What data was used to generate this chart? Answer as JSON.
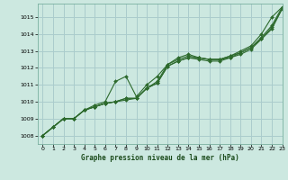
{
  "title": "Graphe pression niveau de la mer (hPa)",
  "bg_color": "#cce8e0",
  "grid_color": "#aacccc",
  "line_color": "#2d6a2d",
  "xlim": [
    -0.5,
    23
  ],
  "ylim": [
    1007.5,
    1015.8
  ],
  "xticks": [
    0,
    1,
    2,
    3,
    4,
    5,
    6,
    7,
    8,
    9,
    10,
    11,
    12,
    13,
    14,
    15,
    16,
    17,
    18,
    19,
    20,
    21,
    22,
    23
  ],
  "yticks": [
    1008,
    1009,
    1010,
    1011,
    1012,
    1013,
    1014,
    1015
  ],
  "series": [
    [
      1008.0,
      1008.5,
      1009.0,
      1009.0,
      1009.5,
      1009.8,
      1010.0,
      1011.2,
      1011.5,
      1010.3,
      1011.0,
      1011.5,
      1012.2,
      1012.6,
      1012.8,
      1012.6,
      1012.5,
      1012.5,
      1012.7,
      1013.0,
      1013.3,
      1014.0,
      1015.0,
      1015.6
    ],
    [
      1008.0,
      1008.5,
      1009.0,
      1009.0,
      1009.5,
      1009.7,
      1009.9,
      1010.0,
      1010.2,
      1010.2,
      1010.8,
      1011.2,
      1012.2,
      1012.5,
      1012.7,
      1012.6,
      1012.5,
      1012.5,
      1012.7,
      1012.9,
      1013.2,
      1013.8,
      1014.5,
      1015.6
    ],
    [
      1008.0,
      1008.5,
      1009.0,
      1009.0,
      1009.5,
      1009.7,
      1009.9,
      1010.0,
      1010.2,
      1010.2,
      1010.8,
      1011.1,
      1012.1,
      1012.4,
      1012.6,
      1012.6,
      1012.5,
      1012.5,
      1012.6,
      1012.9,
      1013.2,
      1013.7,
      1014.4,
      1015.5
    ],
    [
      1008.0,
      1008.5,
      1009.0,
      1009.0,
      1009.5,
      1009.7,
      1009.9,
      1010.0,
      1010.1,
      1010.2,
      1010.8,
      1011.1,
      1012.1,
      1012.4,
      1012.6,
      1012.5,
      1012.4,
      1012.4,
      1012.6,
      1012.8,
      1013.1,
      1013.7,
      1014.3,
      1015.5
    ]
  ]
}
